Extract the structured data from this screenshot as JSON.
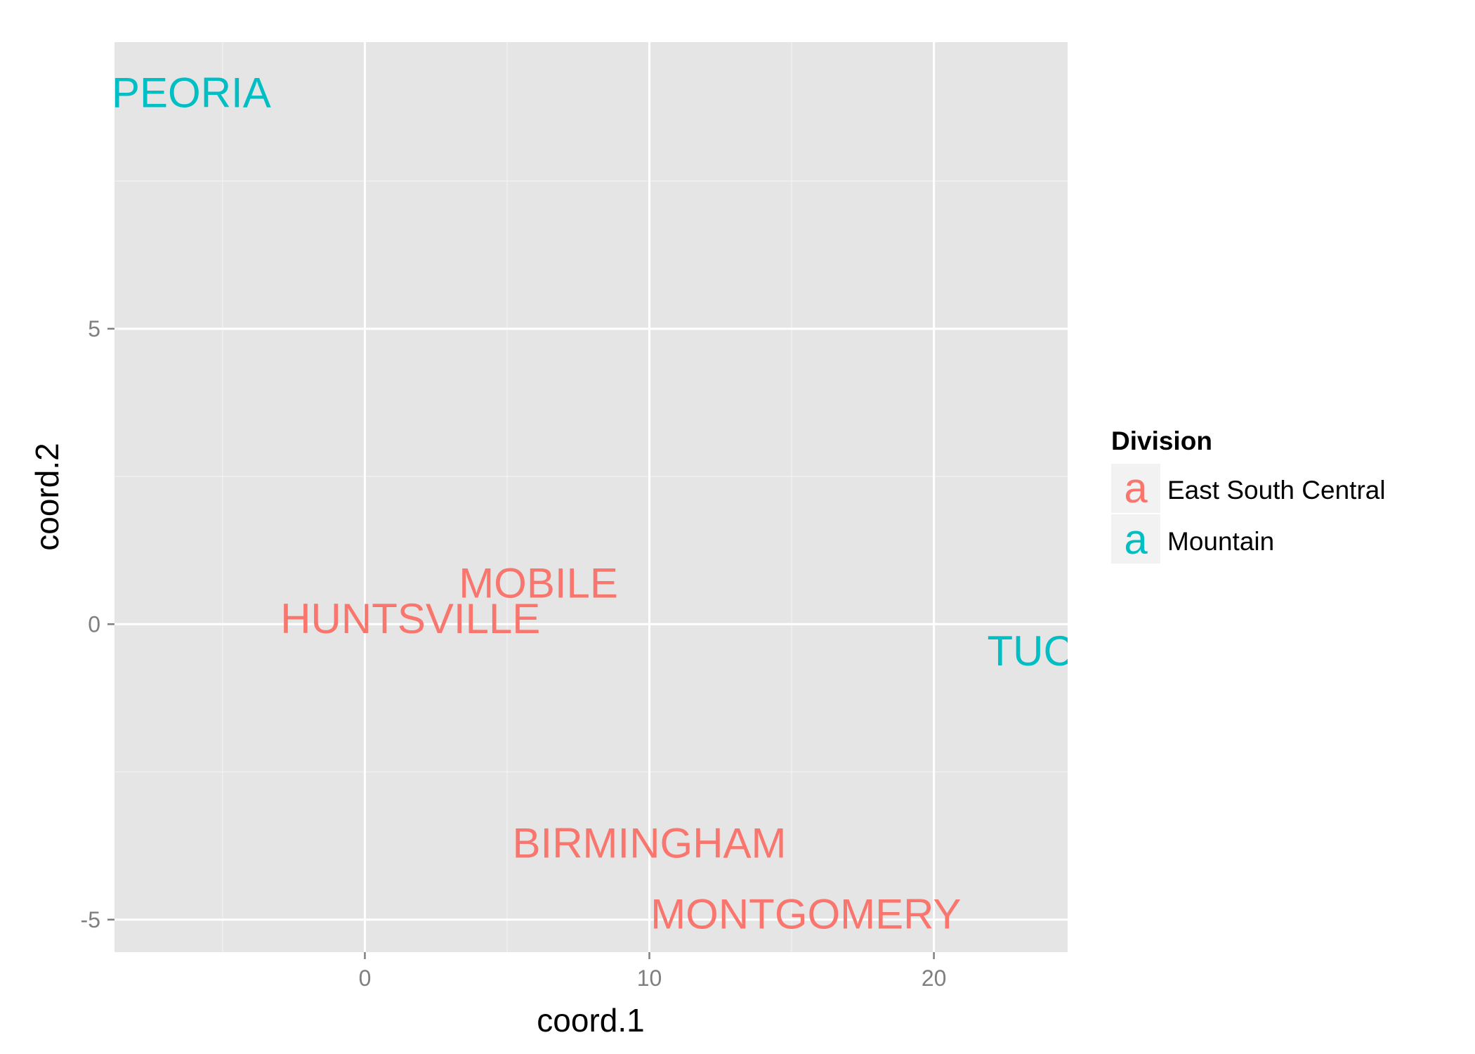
{
  "chart_data": {
    "type": "scatter",
    "geom": "text",
    "title": "",
    "xlabel": "coord.1",
    "ylabel": "coord.2",
    "xlim": [
      -8.8,
      24.7
    ],
    "ylim": [
      -5.55,
      9.85
    ],
    "x_ticks": [
      0,
      10,
      20
    ],
    "y_ticks": [
      -5,
      0,
      5
    ],
    "x_tick_labels": [
      "0",
      "10",
      "20"
    ],
    "y_tick_labels": [
      "-5",
      "0",
      "5"
    ],
    "grid": true,
    "legend": {
      "title": "Division",
      "position": "right",
      "key_glyph": "a",
      "entries": [
        {
          "label": "East South Central",
          "color": "#F8766D"
        },
        {
          "label": "Mountain",
          "color": "#00BFC4"
        }
      ]
    },
    "points": [
      {
        "label": "PEORIA",
        "x": -6.1,
        "y": 9.0,
        "division": "Mountain"
      },
      {
        "label": "MOBILE",
        "x": 6.1,
        "y": 0.7,
        "division": "East South Central"
      },
      {
        "label": "HUNTSVILLE",
        "x": 1.6,
        "y": 0.1,
        "division": "East South Central"
      },
      {
        "label": "TUCSON",
        "x": 25.0,
        "y": -0.45,
        "division": "Mountain"
      },
      {
        "label": "BIRMINGHAM",
        "x": 10.0,
        "y": -3.7,
        "division": "East South Central"
      },
      {
        "label": "MONTGOMERY",
        "x": 15.5,
        "y": -4.9,
        "division": "East South Central"
      }
    ]
  },
  "colors": {
    "panel_background": "#E5E5E5",
    "grid_major": "#FFFFFF",
    "grid_minor": "#F2F2F2",
    "east_south_central": "#F8766D",
    "mountain": "#00BFC4"
  }
}
